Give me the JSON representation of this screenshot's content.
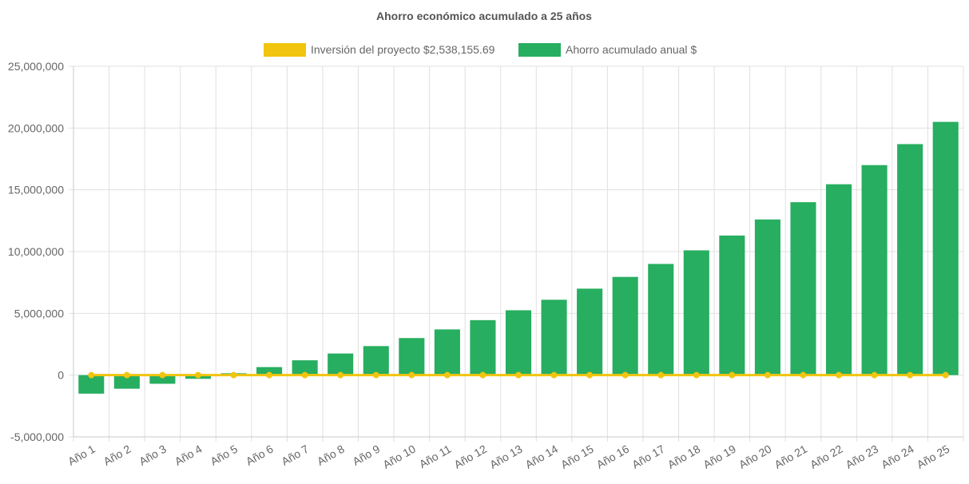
{
  "chart_data": {
    "type": "bar",
    "title": "Ahorro económico acumulado a 25 años",
    "legend_placement": "top-center",
    "grid": true,
    "categories": [
      "Año 1",
      "Año 2",
      "Año 3",
      "Año 4",
      "Año 5",
      "Año 6",
      "Año 7",
      "Año 8",
      "Año 9",
      "Año 10",
      "Año 11",
      "Año 12",
      "Año 13",
      "Año 14",
      "Año 15",
      "Año 16",
      "Año 17",
      "Año 18",
      "Año 19",
      "Año 20",
      "Año 21",
      "Año 22",
      "Año 23",
      "Año 24",
      "Año 25"
    ],
    "series": [
      {
        "name": "Inversión del proyecto $2,538,155.69",
        "type": "line",
        "color": "#f1c40f",
        "values": [
          0,
          0,
          0,
          0,
          0,
          0,
          0,
          0,
          0,
          0,
          0,
          0,
          0,
          0,
          0,
          0,
          0,
          0,
          0,
          0,
          0,
          0,
          0,
          0,
          0
        ]
      },
      {
        "name": "Ahorro acumulado anual $",
        "type": "bar",
        "color": "#27ae60",
        "values": [
          -1500000,
          -1100000,
          -700000,
          -300000,
          150000,
          650000,
          1200000,
          1750000,
          2350000,
          3000000,
          3700000,
          4450000,
          5250000,
          6100000,
          7000000,
          7950000,
          9000000,
          10100000,
          11300000,
          12600000,
          14000000,
          15450000,
          17000000,
          18700000,
          20500000
        ]
      }
    ],
    "ylim": [
      -5000000,
      25000000
    ],
    "yticks": [
      -5000000,
      0,
      5000000,
      10000000,
      15000000,
      20000000,
      25000000
    ],
    "ytick_labels": [
      "-5,000,000",
      "0",
      "5,000,000",
      "10,000,000",
      "15,000,000",
      "20,000,000",
      "25,000,000"
    ],
    "xlabel": "",
    "ylabel": ""
  }
}
